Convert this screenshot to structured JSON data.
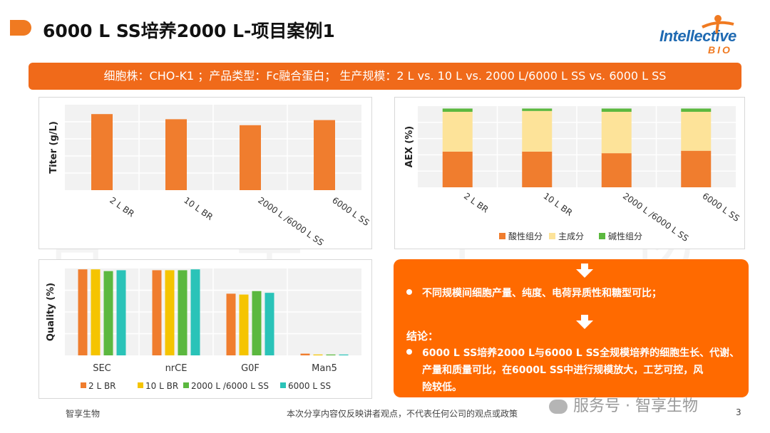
{
  "header": {
    "title": "6000 L SS培养2000 L-项目案例1",
    "logo_line1": "Intellective",
    "logo_line2": "BIO"
  },
  "banner": {
    "text": "细胞株：CHO-K1 ；产品类型：Fc融合蛋白； 生产规模：2 L vs. 10 L vs. 2000 L/6000 L SS vs. 6000 L SS"
  },
  "colors": {
    "accent": "#f07a21",
    "banner": "#f06a1a",
    "box": "#ff6a00",
    "series1": "#f07d2e",
    "series2": "#f5c400",
    "series3": "#5bb83f",
    "series4": "#2ac3b8",
    "aex_main": "#fde399"
  },
  "chart_data": [
    {
      "type": "bar",
      "title": "",
      "ylabel": "Titer (g/L)",
      "xlabel": "",
      "categories": [
        "2 L BR",
        "10 L BR",
        "2000 L /6000 L SS",
        "6000 L SS"
      ],
      "values": [
        0.89,
        0.83,
        0.76,
        0.82
      ],
      "ylim": [
        0,
        1.0
      ],
      "grid": true
    },
    {
      "type": "bar",
      "stacked": true,
      "ylabel": "AEX (%)",
      "categories": [
        "2 L BR",
        "10 L BR",
        "2000 L /6000 L SS",
        "6000 L SS"
      ],
      "series": [
        {
          "name": "酸性组分",
          "values": [
            44,
            44,
            42,
            45
          ]
        },
        {
          "name": "主成分",
          "values": [
            49,
            50,
            51,
            48
          ]
        },
        {
          "name": "碱性组分",
          "values": [
            4,
            3,
            4,
            4
          ]
        }
      ],
      "ylim": [
        0,
        100
      ],
      "legend": "bottom"
    },
    {
      "type": "bar",
      "ylabel": "Quality (%)",
      "categories": [
        "SEC",
        "nrCE",
        "G0F",
        "Man5"
      ],
      "series": [
        {
          "name": "2 L BR",
          "values": [
            99,
            98,
            71,
            2
          ]
        },
        {
          "name": "10 L BR",
          "values": [
            99,
            98,
            70,
            1
          ]
        },
        {
          "name": "2000 L /6000 L SS",
          "values": [
            97,
            98,
            74,
            1
          ]
        },
        {
          "name": "6000 L SS",
          "values": [
            98,
            99,
            72,
            1
          ]
        }
      ],
      "ylim": [
        0,
        100
      ],
      "legend": "bottom"
    }
  ],
  "watermark": [
    "智",
    "享",
    "生",
    "物"
  ],
  "conclusion": {
    "point1": "不同规模间细胞产量、纯度、电荷异质性和糖型可比；",
    "heading": "结论：",
    "point2_line1": "6000 L SS培养2000 L与6000 L SS全规模培养的细胞生长、代谢、",
    "point2_line2": "产量和质量可比，在6000L SS中进行规模放大，工艺可控，风",
    "point2_line3": "险较低。"
  },
  "footer": {
    "left": "智享生物",
    "center": "本次分享内容仅反映讲者观点，不代表任何公司的观点或政策",
    "page": "3",
    "wechat": "服务号 · 智享生物"
  }
}
